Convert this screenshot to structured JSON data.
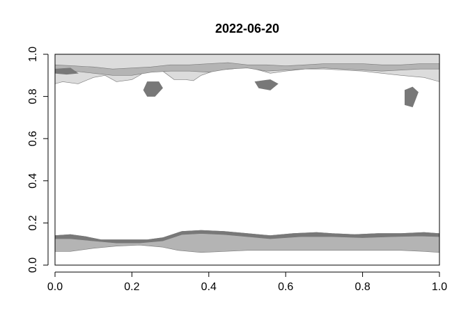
{
  "chart_data": {
    "type": "heatmap",
    "title": "2022-06-20",
    "xlabel": "",
    "ylabel": "",
    "xlim": [
      0,
      1
    ],
    "ylim": [
      0,
      1
    ],
    "x_ticks": [
      "0.0",
      "0.2",
      "0.4",
      "0.6",
      "0.8",
      "1.0"
    ],
    "y_ticks": [
      "0.0",
      "0.2",
      "0.4",
      "0.6",
      "0.8",
      "1.0"
    ],
    "grid": false,
    "colors": {
      "background": "#ffffff",
      "light_cover": "#dcdcdc",
      "mid_cover": "#b4b4b4",
      "dark_cover": "#787878",
      "axis": "#000000"
    },
    "regions": [
      {
        "name": "northern-cover",
        "shade": "light_cover",
        "points": [
          [
            0,
            1
          ],
          [
            1,
            1
          ],
          [
            1,
            0.87
          ],
          [
            0.96,
            0.89
          ],
          [
            0.9,
            0.9
          ],
          [
            0.85,
            0.91
          ],
          [
            0.8,
            0.92
          ],
          [
            0.75,
            0.925
          ],
          [
            0.7,
            0.93
          ],
          [
            0.65,
            0.93
          ],
          [
            0.6,
            0.92
          ],
          [
            0.56,
            0.91
          ],
          [
            0.52,
            0.93
          ],
          [
            0.5,
            0.94
          ],
          [
            0.46,
            0.93
          ],
          [
            0.42,
            0.925
          ],
          [
            0.38,
            0.9
          ],
          [
            0.36,
            0.875
          ],
          [
            0.34,
            0.88
          ],
          [
            0.31,
            0.88
          ],
          [
            0.28,
            0.92
          ],
          [
            0.25,
            0.94
          ],
          [
            0.22,
            0.9
          ],
          [
            0.2,
            0.88
          ],
          [
            0.16,
            0.87
          ],
          [
            0.13,
            0.9
          ],
          [
            0.1,
            0.89
          ],
          [
            0.06,
            0.86
          ],
          [
            0.02,
            0.87
          ],
          [
            0,
            0.86
          ]
        ]
      },
      {
        "name": "northern-edge-band",
        "shade": "mid_cover",
        "points": [
          [
            0,
            0.95
          ],
          [
            0.05,
            0.945
          ],
          [
            0.1,
            0.94
          ],
          [
            0.15,
            0.93
          ],
          [
            0.2,
            0.935
          ],
          [
            0.25,
            0.94
          ],
          [
            0.3,
            0.95
          ],
          [
            0.35,
            0.95
          ],
          [
            0.4,
            0.955
          ],
          [
            0.45,
            0.96
          ],
          [
            0.5,
            0.95
          ],
          [
            0.55,
            0.95
          ],
          [
            0.6,
            0.945
          ],
          [
            0.65,
            0.95
          ],
          [
            0.7,
            0.955
          ],
          [
            0.75,
            0.955
          ],
          [
            0.8,
            0.955
          ],
          [
            0.85,
            0.95
          ],
          [
            0.9,
            0.95
          ],
          [
            0.95,
            0.955
          ],
          [
            1,
            0.955
          ],
          [
            1,
            0.93
          ],
          [
            0.95,
            0.93
          ],
          [
            0.9,
            0.925
          ],
          [
            0.85,
            0.92
          ],
          [
            0.8,
            0.925
          ],
          [
            0.75,
            0.93
          ],
          [
            0.7,
            0.935
          ],
          [
            0.65,
            0.93
          ],
          [
            0.6,
            0.925
          ],
          [
            0.55,
            0.92
          ],
          [
            0.5,
            0.935
          ],
          [
            0.45,
            0.93
          ],
          [
            0.4,
            0.915
          ],
          [
            0.35,
            0.92
          ],
          [
            0.3,
            0.92
          ],
          [
            0.25,
            0.915
          ],
          [
            0.2,
            0.9
          ],
          [
            0.15,
            0.9
          ],
          [
            0.1,
            0.91
          ],
          [
            0.05,
            0.92
          ],
          [
            0,
            0.93
          ]
        ]
      },
      {
        "name": "northern-dark-patches",
        "shade": "dark_cover",
        "points": [
          [
            0.0,
            0.93
          ],
          [
            0.04,
            0.935
          ],
          [
            0.06,
            0.91
          ],
          [
            0.03,
            0.905
          ],
          [
            0.0,
            0.91
          ]
        ]
      },
      {
        "name": "arctic-island-1",
        "shade": "dark_cover",
        "points": [
          [
            0.24,
            0.87
          ],
          [
            0.27,
            0.87
          ],
          [
            0.28,
            0.84
          ],
          [
            0.26,
            0.8
          ],
          [
            0.24,
            0.8
          ],
          [
            0.23,
            0.83
          ]
        ]
      },
      {
        "name": "arctic-island-2",
        "shade": "dark_cover",
        "points": [
          [
            0.52,
            0.87
          ],
          [
            0.56,
            0.88
          ],
          [
            0.58,
            0.86
          ],
          [
            0.56,
            0.83
          ],
          [
            0.53,
            0.84
          ]
        ]
      },
      {
        "name": "arctic-island-3",
        "shade": "dark_cover",
        "points": [
          [
            0.91,
            0.83
          ],
          [
            0.93,
            0.845
          ],
          [
            0.945,
            0.82
          ],
          [
            0.93,
            0.75
          ],
          [
            0.91,
            0.76
          ]
        ]
      },
      {
        "name": "southern-cover",
        "shade": "mid_cover",
        "points": [
          [
            0,
            0.14
          ],
          [
            0.04,
            0.145
          ],
          [
            0.08,
            0.135
          ],
          [
            0.12,
            0.12
          ],
          [
            0.18,
            0.12
          ],
          [
            0.24,
            0.12
          ],
          [
            0.28,
            0.13
          ],
          [
            0.33,
            0.16
          ],
          [
            0.38,
            0.165
          ],
          [
            0.44,
            0.16
          ],
          [
            0.5,
            0.15
          ],
          [
            0.56,
            0.14
          ],
          [
            0.62,
            0.15
          ],
          [
            0.68,
            0.155
          ],
          [
            0.72,
            0.15
          ],
          [
            0.78,
            0.145
          ],
          [
            0.84,
            0.15
          ],
          [
            0.9,
            0.15
          ],
          [
            0.96,
            0.155
          ],
          [
            1,
            0.15
          ],
          [
            1,
            0.06
          ],
          [
            0.96,
            0.065
          ],
          [
            0.9,
            0.07
          ],
          [
            0.8,
            0.07
          ],
          [
            0.7,
            0.07
          ],
          [
            0.6,
            0.07
          ],
          [
            0.5,
            0.07
          ],
          [
            0.44,
            0.065
          ],
          [
            0.38,
            0.06
          ],
          [
            0.32,
            0.07
          ],
          [
            0.28,
            0.085
          ],
          [
            0.22,
            0.095
          ],
          [
            0.16,
            0.09
          ],
          [
            0.1,
            0.08
          ],
          [
            0.04,
            0.065
          ],
          [
            0,
            0.065
          ]
        ]
      },
      {
        "name": "southern-dark-rim",
        "shade": "dark_cover",
        "points": [
          [
            0,
            0.14
          ],
          [
            0.04,
            0.145
          ],
          [
            0.08,
            0.135
          ],
          [
            0.12,
            0.12
          ],
          [
            0.18,
            0.12
          ],
          [
            0.24,
            0.12
          ],
          [
            0.28,
            0.13
          ],
          [
            0.33,
            0.16
          ],
          [
            0.38,
            0.165
          ],
          [
            0.44,
            0.16
          ],
          [
            0.5,
            0.15
          ],
          [
            0.56,
            0.14
          ],
          [
            0.62,
            0.15
          ],
          [
            0.68,
            0.155
          ],
          [
            0.72,
            0.15
          ],
          [
            0.78,
            0.145
          ],
          [
            0.84,
            0.15
          ],
          [
            0.9,
            0.15
          ],
          [
            0.96,
            0.155
          ],
          [
            1,
            0.15
          ],
          [
            1,
            0.135
          ],
          [
            0.95,
            0.138
          ],
          [
            0.88,
            0.135
          ],
          [
            0.8,
            0.13
          ],
          [
            0.72,
            0.135
          ],
          [
            0.64,
            0.135
          ],
          [
            0.56,
            0.125
          ],
          [
            0.5,
            0.135
          ],
          [
            0.44,
            0.145
          ],
          [
            0.38,
            0.15
          ],
          [
            0.33,
            0.145
          ],
          [
            0.28,
            0.115
          ],
          [
            0.22,
            0.105
          ],
          [
            0.16,
            0.105
          ],
          [
            0.1,
            0.115
          ],
          [
            0.04,
            0.125
          ],
          [
            0,
            0.125
          ]
        ]
      }
    ]
  }
}
